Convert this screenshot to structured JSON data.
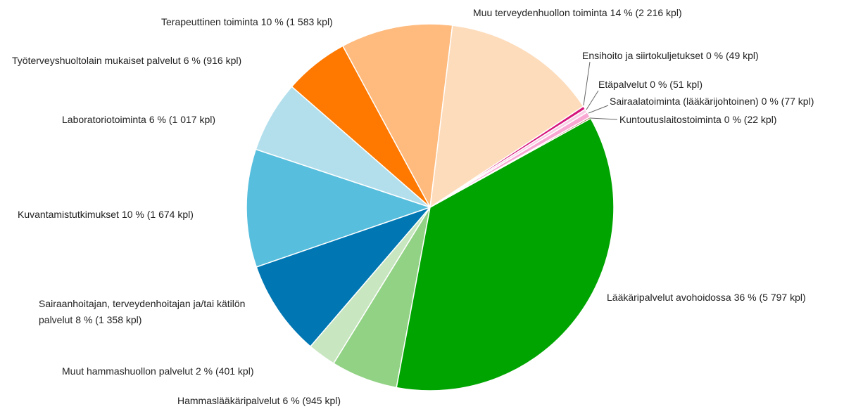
{
  "chart_data": {
    "type": "pie",
    "categories": [
      "Muu terveydenhuollon toiminta",
      "Ensihoito ja siirtokuljetukset",
      "Etäpalvelut",
      "Sairaalatoiminta (lääkärijohtoinen)",
      "Kuntoutuslaitostoiminta",
      "Lääkäripalvelut avohoidossa",
      "Hammaslääkäripalvelut",
      "Muut hammashuollon palvelut",
      "Sairaanhoitajan, terveydenhoitajan ja/tai kätilön palvelut",
      "Kuvantamistutkimukset",
      "Laboratoriotoiminta",
      "Työterveyshuoltolain mukaiset palvelut",
      "Terapeuttinen toiminta"
    ],
    "values": [
      2216,
      49,
      51,
      77,
      22,
      5797,
      945,
      401,
      1358,
      1674,
      1017,
      916,
      1583
    ],
    "value_labels": [
      "14 % (2 216 kpl)",
      "0 % (49 kpl)",
      "0 % (51 kpl)",
      "0 % (77 kpl)",
      "0 % (22 kpl)",
      "36 % (5 797 kpl)",
      "6 % (945 kpl)",
      "2 % (401 kpl)",
      "8 % (1 358 kpl)",
      "10 % (1 674 kpl)",
      "6 % (1 017 kpl)",
      "6 % (916 kpl)",
      "10 % (1 583 kpl)"
    ],
    "colors": [
      "#fddcbc",
      "#d6157c",
      "#f7d0e6",
      "#f9a8d4",
      "#8c4a1c",
      "#00a400",
      "#92d285",
      "#c8e6c0",
      "#0077b3",
      "#57bedd",
      "#b3dfed",
      "#ff7800",
      "#ffba7d"
    ]
  }
}
